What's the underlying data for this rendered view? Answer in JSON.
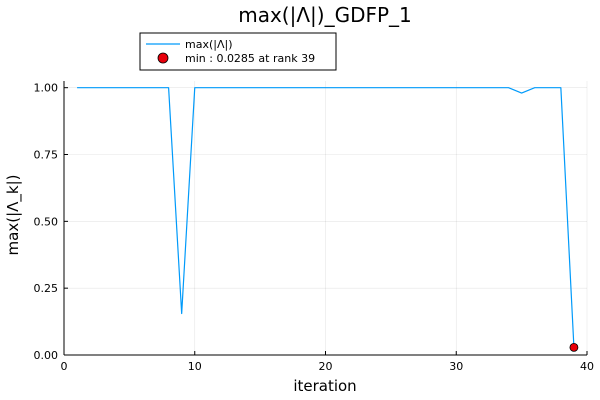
{
  "chart_data": {
    "type": "line",
    "title": "max(|Λ|)_GDFP_1",
    "xlabel": "iteration",
    "ylabel": "max(|Λ_k|)",
    "xlim": [
      0,
      40
    ],
    "ylim": [
      0,
      1.025
    ],
    "xticks": [
      0,
      10,
      20,
      30,
      40
    ],
    "xtick_labels": [
      "0",
      "10",
      "20",
      "30",
      "40"
    ],
    "yticks": [
      0,
      0.25,
      0.5,
      0.75,
      1.0
    ],
    "ytick_labels": [
      "0.00",
      "0.25",
      "0.50",
      "0.75",
      "1.00"
    ],
    "grid": true,
    "legend_position": "top-left",
    "series": [
      {
        "name": "max(|Λ|)",
        "color": "#009AFA",
        "x": [
          1,
          2,
          3,
          4,
          5,
          6,
          7,
          8,
          9,
          10,
          11,
          12,
          13,
          14,
          15,
          16,
          17,
          18,
          19,
          20,
          21,
          22,
          23,
          24,
          25,
          26,
          27,
          28,
          29,
          30,
          31,
          32,
          33,
          34,
          35,
          36,
          37,
          38,
          39
        ],
        "y": [
          1,
          1,
          1,
          1,
          1,
          1,
          1,
          1,
          0.155,
          1,
          1,
          1,
          1,
          1,
          1,
          1,
          1,
          1,
          1,
          1,
          1,
          1,
          1,
          1,
          1,
          1,
          1,
          1,
          1,
          1,
          1,
          1,
          1,
          1,
          0.98,
          1,
          1,
          1,
          0.0285
        ]
      }
    ],
    "markers": [
      {
        "name": "min : 0.0285 at rank 39",
        "color": "#E8000B",
        "x": 39,
        "y": 0.0285
      }
    ]
  }
}
